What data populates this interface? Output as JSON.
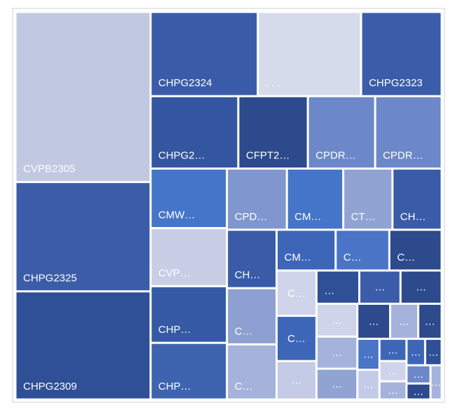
{
  "chart_data": {
    "type": "treemap",
    "labels": [
      "CVPB2305",
      "CHPG2325",
      "CHPG2309",
      "CHPG2324",
      ". . .",
      "CHPG2323",
      "CHPG2…",
      "CFPT2…",
      "CPDR…",
      "CPDR…",
      "CMW…",
      "CVP…",
      "CHP…",
      "CHP…",
      "CPD…",
      "CM…",
      "CT…",
      "CH…",
      "CH…",
      "C…",
      "C…",
      "CM…",
      "C…",
      "C…",
      "C…",
      "C…",
      "…",
      "…",
      "…",
      "…",
      "…",
      "…",
      "…",
      "…",
      "…",
      "…",
      "…",
      "…",
      "…",
      "…",
      "…",
      "…",
      "…",
      "…",
      "…",
      "…"
    ],
    "values": [
      42000,
      27000,
      26700,
      16500,
      15900,
      12400,
      11600,
      9200,
      8900,
      8800,
      8300,
      8100,
      7900,
      7900,
      6700,
      6300,
      5500,
      5500,
      5300,
      5100,
      5000,
      4400,
      4000,
      3900,
      3300,
      3300,
      2800,
      2600,
      2500,
      2500,
      2450,
      2400,
      2300,
      2100,
      1800,
      1500,
      1250,
      1200,
      1100,
      1000,
      900,
      900,
      800,
      800,
      700,
      700
    ],
    "colors": [
      "#c0c8e2",
      "#3b5ca8",
      "#2f4f96",
      "#3a5ca8",
      "#d6dbec",
      "#3b5ca8",
      "#34559f",
      "#2c4a8c",
      "#6d88c9",
      "#6d88c9",
      "#4575c8",
      "#c9cde6",
      "#355aa3",
      "#3e64b0",
      "#7f96cf",
      "#4575c8",
      "#91a3d2",
      "#3a5ca8",
      "#3a5ca8",
      "#8ea0d2",
      "#a5b3dc",
      "#3e66b8",
      "#4a74c6",
      "#2c4a8c",
      "#d0d4ea",
      "#3e66b8",
      "#c4cbe6",
      "#2f4f96",
      "#3b5ca8",
      "#2c4a8c",
      "#d0d4ea",
      "#a5b3dc",
      "#91a3d2",
      "#2c4a8c",
      "#a5b3dc",
      "#2c4a8c",
      "#4a74c6",
      "#c4cbe6",
      "#3e66b8",
      "#d0d4ea",
      "#a5b3dc",
      "#3e66b8",
      "#2f4f96",
      "#6d88c9",
      "#2c4a8c",
      "#a5b3dc"
    ]
  }
}
